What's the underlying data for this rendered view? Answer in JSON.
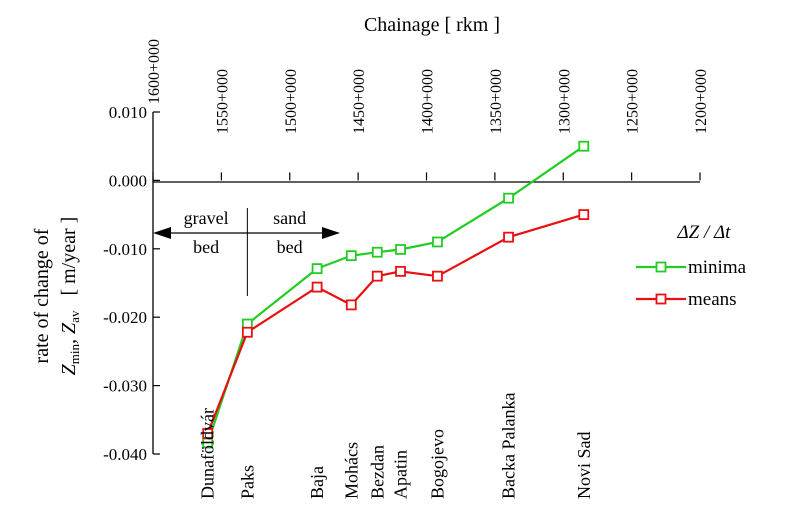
{
  "chart_data": {
    "type": "line",
    "top_axis_title": "Chainage [ rkm ]",
    "top_ticks": [
      "1600+000",
      "1550+000",
      "1500+000",
      "1450+000",
      "1400+000",
      "1350+000",
      "1300+000",
      "1250+000",
      "1200+000"
    ],
    "top_tick_values": [
      1600,
      1550,
      1500,
      1450,
      1400,
      1350,
      1300,
      1250,
      1200
    ],
    "x_range": [
      1600,
      1200
    ],
    "ylabel_line1": "rate of change of",
    "ylabel_line2_parts": [
      "Z",
      "min",
      ", Z",
      "av",
      "   [ m/year ]"
    ],
    "y_ticks": [
      "0.010",
      "0.000",
      "-0.010",
      "-0.020",
      "-0.030",
      "-0.040"
    ],
    "y_tick_values": [
      0.01,
      0.0,
      -0.01,
      -0.02,
      -0.03,
      -0.04
    ],
    "ylim": [
      -0.04,
      0.01
    ],
    "legend_title": "ΔZ / Δt",
    "series": [
      {
        "name": "minima",
        "color": "#22cc22",
        "x": [
          1560,
          1531,
          1480,
          1455,
          1436,
          1419,
          1392,
          1340,
          1285
        ],
        "y": [
          -0.0384,
          -0.021,
          -0.0129,
          -0.011,
          -0.0105,
          -0.0101,
          -0.009,
          -0.0026,
          0.005
        ]
      },
      {
        "name": "means",
        "color": "#e81010",
        "x": [
          1560,
          1531,
          1480,
          1455,
          1436,
          1419,
          1392,
          1340,
          1285
        ],
        "y": [
          -0.037,
          -0.0222,
          -0.0156,
          -0.0182,
          -0.014,
          -0.0133,
          -0.014,
          -0.0083,
          -0.005
        ]
      }
    ],
    "stations": [
      {
        "name": "Dunaföldvár",
        "x": 1560
      },
      {
        "name": "Paks",
        "x": 1531
      },
      {
        "name": "Baja",
        "x": 1480
      },
      {
        "name": "Mohács",
        "x": 1455
      },
      {
        "name": "Bezdan",
        "x": 1436
      },
      {
        "name": "Apatin",
        "x": 1419
      },
      {
        "name": "Bogojevo",
        "x": 1392
      },
      {
        "name": "Backa Palanka",
        "x": 1340
      },
      {
        "name": "Novi Sad",
        "x": 1285
      }
    ],
    "annotation": {
      "boundary_x": 1531,
      "left": [
        "gravel",
        "bed"
      ],
      "right": [
        "sand",
        "bed"
      ]
    },
    "legend_placement": "right"
  }
}
